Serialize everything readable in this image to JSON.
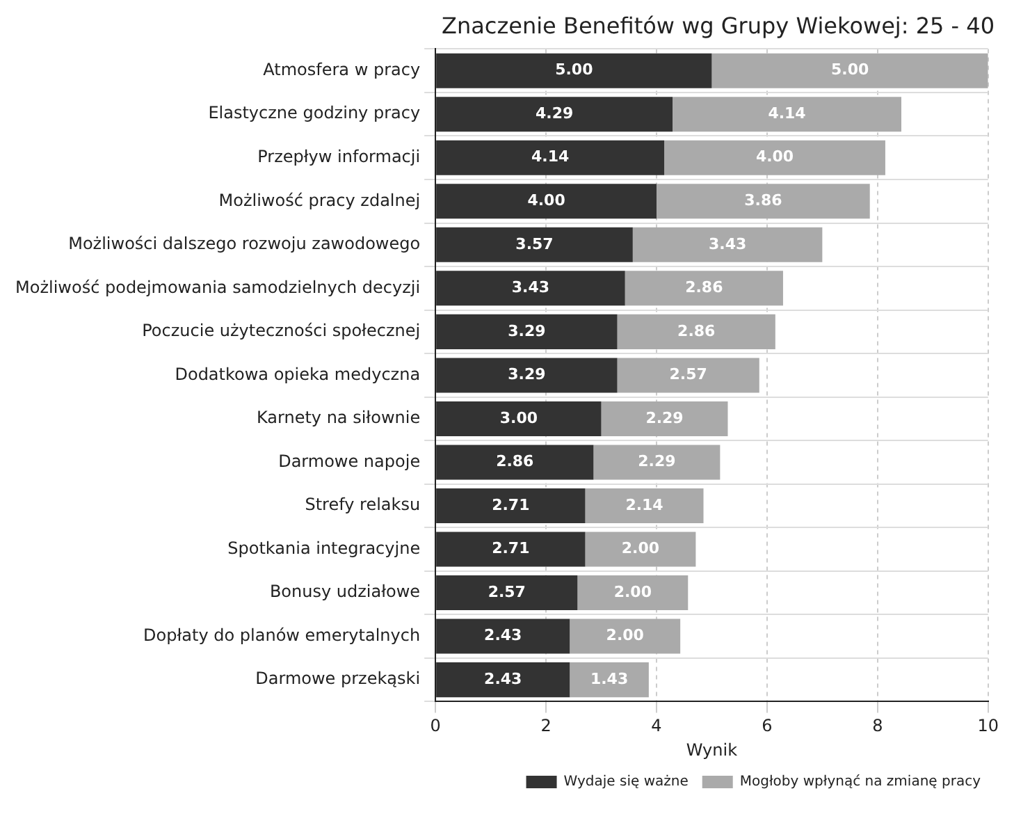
{
  "chart_data": {
    "type": "bar",
    "orientation": "horizontal",
    "stacked": true,
    "title": "Znaczenie Benefitów wg Grupy Wiekowej: 25 - 40",
    "xlabel": "Wynik",
    "categories": [
      "Atmosfera w pracy",
      "Elastyczne godziny pracy",
      "Przepływ informacji",
      "Możliwość pracy zdalnej",
      "Możliwości dalszego rozwoju zawodowego",
      "Możliwość podejmowania samodzielnych decyzji",
      "Poczucie użyteczności społecznej",
      "Dodatkowa opieka medyczna",
      "Karnety na siłownie",
      "Darmowe napoje",
      "Strefy relaksu",
      "Spotkania integracyjne",
      "Bonusy udziałowe",
      "Dopłaty do planów emerytalnych",
      "Darmowe przekąski"
    ],
    "series": [
      {
        "name": "Wydaje się ważne",
        "color": "#333333",
        "values": [
          5.0,
          4.29,
          4.14,
          4.0,
          3.57,
          3.43,
          3.29,
          3.29,
          3.0,
          2.86,
          2.71,
          2.71,
          2.57,
          2.43,
          2.43
        ],
        "value_labels": [
          "5.00",
          "4.29",
          "4.14",
          "4.00",
          "3.57",
          "3.43",
          "3.29",
          "3.29",
          "3.00",
          "2.86",
          "2.71",
          "2.71",
          "2.57",
          "2.43",
          "2.43"
        ]
      },
      {
        "name": "Mogłoby wpłynąć na zmianę pracy",
        "color": "#aaaaaa",
        "values": [
          5.0,
          4.14,
          4.0,
          3.86,
          3.43,
          2.86,
          2.86,
          2.57,
          2.29,
          2.29,
          2.14,
          2.0,
          2.0,
          2.0,
          1.43
        ],
        "value_labels": [
          "5.00",
          "4.14",
          "4.00",
          "3.86",
          "3.43",
          "2.86",
          "2.86",
          "2.57",
          "2.29",
          "2.29",
          "2.14",
          "2.00",
          "2.00",
          "2.00",
          "1.43"
        ]
      }
    ],
    "xlim": [
      0,
      10
    ],
    "xticks": [
      0,
      2,
      4,
      6,
      8,
      10
    ],
    "grid": true,
    "legend": "bottom right"
  }
}
